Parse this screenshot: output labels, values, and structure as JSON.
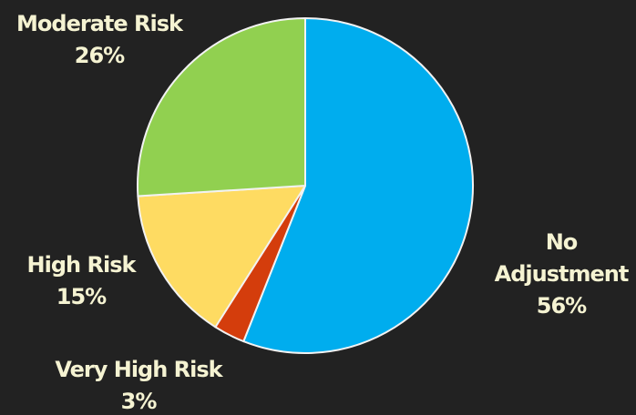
{
  "chart_data": {
    "type": "pie",
    "title": "",
    "slices": [
      {
        "label": "No Adjustment",
        "label_lines": [
          "No",
          "Adjustment",
          "56%"
        ],
        "value": 56,
        "color": "#00adee"
      },
      {
        "label": "Very High Risk",
        "label_lines": [
          "Very High Risk",
          "3%"
        ],
        "value": 3,
        "color": "#d43d0c"
      },
      {
        "label": "High Risk",
        "label_lines": [
          "High Risk",
          "15%"
        ],
        "value": 15,
        "color": "#fedb62"
      },
      {
        "label": "Moderate Risk",
        "label_lines": [
          "Moderate Risk",
          "26%"
        ],
        "value": 26,
        "color": "#91d050"
      }
    ],
    "start_angle_deg": 0,
    "direction": "clockwise",
    "legend": "none",
    "label_color": "#f5f3d2",
    "slice_border_color": "#f2f2f2",
    "background": "#222222"
  }
}
